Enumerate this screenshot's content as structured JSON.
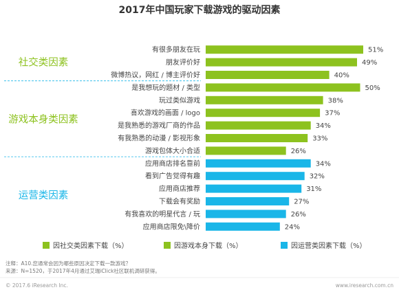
{
  "chart_data": {
    "type": "bar",
    "orientation": "horizontal",
    "title": "2017年中国玩家下载游戏的驱动因素",
    "unit": "%",
    "xlim": [
      0,
      51
    ],
    "groups": [
      {
        "label": "社交类因素",
        "color": "#8dc21f",
        "label_color": "#8dc21f",
        "bars": [
          {
            "category": "有很多朋友在玩",
            "value": 51,
            "label": "51%"
          },
          {
            "category": "朋友评价好",
            "value": 49,
            "label": "49%"
          },
          {
            "category": "微博热议，网红 / 博主评价好",
            "value": 40,
            "label": "40%"
          }
        ]
      },
      {
        "label": "游戏本身类因素",
        "color": "#8dc21f",
        "label_color": "#8dc21f",
        "bars": [
          {
            "category": "是我想玩的题材 / 类型",
            "value": 50,
            "label": "50%"
          },
          {
            "category": "玩过类似游戏",
            "value": 38,
            "label": "38%"
          },
          {
            "category": "喜欢游戏的画面 / logo",
            "value": 37,
            "label": "37%"
          },
          {
            "category": "是我熟悉的游戏厂商的作品",
            "value": 34,
            "label": "34%"
          },
          {
            "category": "有我熟悉的动漫 / 影视形象",
            "value": 33,
            "label": "33%"
          },
          {
            "category": "游戏包体大小合适",
            "value": 26,
            "label": "26%"
          }
        ]
      },
      {
        "label": "运营类因素",
        "color": "#1ab6e8",
        "label_color": "#1ab6e8",
        "bars": [
          {
            "category": "应用商店排名靠前",
            "value": 34,
            "label": "34%"
          },
          {
            "category": "看到广告觉得有趣",
            "value": 32,
            "label": "32%"
          },
          {
            "category": "应用商店推荐",
            "value": 31,
            "label": "31%"
          },
          {
            "category": "下载会有奖励",
            "value": 27,
            "label": "27%"
          },
          {
            "category": "有我喜欢的明星代言 / 玩",
            "value": 26,
            "label": "26%"
          },
          {
            "category": "应用商店限免\\降价",
            "value": 24,
            "label": "24%"
          }
        ]
      }
    ],
    "legend": {
      "placement": "bottom",
      "items": [
        {
          "label": "因社交类因素下载（%）",
          "color": "#8dc21f"
        },
        {
          "label": "因游戏本身下载（%）",
          "color": "#8dc21f"
        },
        {
          "label": "因运营类因素下载（%）",
          "color": "#1ab6e8"
        }
      ]
    }
  },
  "notes": {
    "note_line": "注释：A10.您通常会因为哪些原因决定下载一款游戏？",
    "source_line": "来源：N=1520，于2017年4月通过艾瑞iClick社区联机调研获得。"
  },
  "footer": {
    "left": "© 2017.6 iResearch Inc.",
    "right": "www.iresearch.com.cn"
  },
  "colors": {
    "social": "#8dc21f",
    "game": "#8dc21f",
    "ops": "#1ab6e8",
    "divider": "#1ab6e8"
  }
}
